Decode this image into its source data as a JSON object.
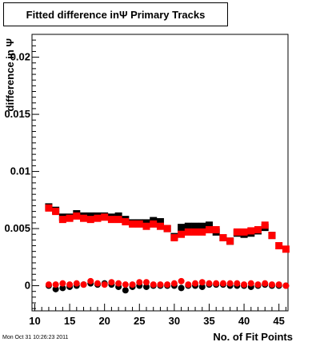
{
  "title": "Fitted difference inΨ  Primary Tracks",
  "timestamp": "Mon Oct 31 10:26:23 2011",
  "chart_data": {
    "type": "scatter",
    "title": "Fitted difference inΨ  Primary Tracks",
    "xlabel": "No. of Fit Points",
    "ylabel": "difference in Ψ",
    "xlim": [
      9.6,
      46.3
    ],
    "ylim": [
      -0.0022,
      0.022
    ],
    "x_ticks": [
      10,
      15,
      20,
      25,
      30,
      35,
      40,
      45
    ],
    "x_tick_labels": [
      "10",
      "15",
      "20",
      "25",
      "30",
      "35",
      "40",
      "45"
    ],
    "y_ticks": [
      0,
      0.005,
      0.01,
      0.015,
      0.02
    ],
    "y_tick_labels": [
      "0",
      "0.005",
      "0.01",
      "0.015",
      "0.02"
    ],
    "colors": {
      "series_black": "#000000",
      "series_red": "#ff0000"
    },
    "series": [
      {
        "marker": "square",
        "color": "#000000",
        "x": [
          12,
          13,
          14,
          15,
          16,
          17,
          18,
          19,
          20,
          21,
          22,
          23,
          24,
          25,
          26,
          27,
          28,
          29,
          30,
          31,
          32,
          33,
          34,
          35,
          36,
          37,
          38,
          39,
          40,
          41,
          42,
          43,
          44
        ],
        "values": [
          0.0069,
          0.0066,
          0.006,
          0.006,
          0.0063,
          0.0061,
          0.0061,
          0.0061,
          0.0061,
          0.006,
          0.0061,
          0.0058,
          0.0055,
          0.0055,
          0.0055,
          0.0057,
          0.0056,
          0.005,
          0.0043,
          0.0051,
          0.0052,
          0.0052,
          0.0052,
          0.0053,
          0.0047,
          0.0042,
          0.0039,
          0.0046,
          0.0045,
          0.0046,
          0.0048,
          0.0051,
          0.0044
        ]
      },
      {
        "marker": "square",
        "color": "#ff0000",
        "x": [
          12,
          13,
          14,
          15,
          16,
          17,
          18,
          19,
          20,
          21,
          22,
          23,
          24,
          25,
          26,
          27,
          28,
          29,
          30,
          31,
          32,
          33,
          34,
          35,
          36,
          37,
          38,
          39,
          40,
          41,
          42,
          43,
          44,
          45,
          46
        ],
        "values": [
          0.0068,
          0.0065,
          0.0058,
          0.0059,
          0.0061,
          0.0059,
          0.0058,
          0.0059,
          0.006,
          0.0058,
          0.0058,
          0.0056,
          0.0054,
          0.0054,
          0.0052,
          0.0054,
          0.0052,
          0.005,
          0.0042,
          0.0045,
          0.0047,
          0.0047,
          0.0047,
          0.0049,
          0.0049,
          0.0042,
          0.0039,
          0.0047,
          0.0047,
          0.0048,
          0.0049,
          0.0053,
          0.0044,
          0.0035,
          0.0032
        ]
      },
      {
        "marker": "circle",
        "color": "#000000",
        "x": [
          12,
          13,
          14,
          15,
          16,
          17,
          18,
          19,
          20,
          21,
          22,
          23,
          24,
          25,
          26,
          27,
          28,
          29,
          30,
          31,
          32,
          33,
          34,
          35,
          36,
          37,
          38,
          39,
          40,
          41,
          42,
          43,
          44,
          45,
          46
        ],
        "values": [
          0.0,
          -0.0003,
          -0.0002,
          -0.0001,
          0.0,
          0.0001,
          0.0002,
          0.0001,
          0.0002,
          0.0001,
          -0.0001,
          -0.0004,
          -0.0001,
          0.0,
          -0.0001,
          0.0,
          0.0,
          0.0,
          0.0,
          -0.0002,
          0.0,
          0.0,
          -0.0001,
          0.0001,
          0.0001,
          0.0001,
          0.0,
          0.0,
          0.0,
          -0.0001,
          0.0,
          0.0001,
          0.0,
          0.0,
          0.0
        ]
      },
      {
        "marker": "circle",
        "color": "#ff0000",
        "x": [
          12,
          13,
          14,
          15,
          16,
          17,
          18,
          19,
          20,
          21,
          22,
          23,
          24,
          25,
          26,
          27,
          28,
          29,
          30,
          31,
          32,
          33,
          34,
          35,
          36,
          37,
          38,
          39,
          40,
          41,
          42,
          43,
          44,
          45,
          46
        ],
        "values": [
          0.0001,
          0.0001,
          0.0002,
          0.0001,
          0.0002,
          0.0001,
          0.0004,
          0.0002,
          0.0001,
          0.0003,
          0.0002,
          0.0001,
          0.0001,
          0.0003,
          0.0003,
          0.0001,
          0.0001,
          0.0001,
          0.0002,
          0.0004,
          0.0001,
          0.0002,
          0.0003,
          0.0002,
          0.0002,
          0.0002,
          0.0002,
          0.0002,
          0.0001,
          0.0002,
          0.0001,
          0.0002,
          0.0001,
          0.0001,
          0.0
        ]
      }
    ]
  }
}
